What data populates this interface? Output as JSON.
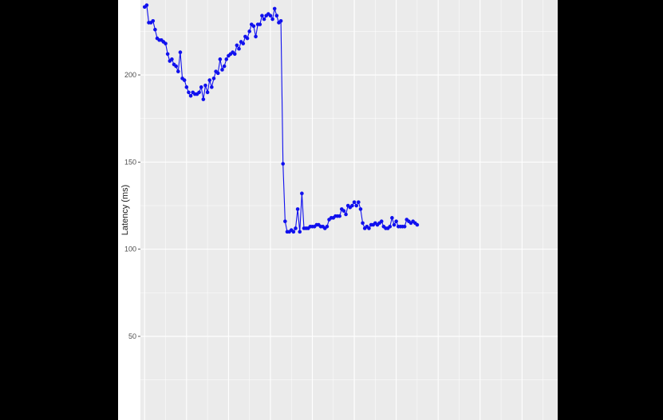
{
  "chart_data": {
    "type": "line",
    "title": "",
    "xlabel": "",
    "ylabel": "Latency (ms)",
    "ylim": [
      2,
      243
    ],
    "xlim": [
      -2,
      197
    ],
    "yticks": [
      50,
      100,
      150,
      200
    ],
    "ytick_labels": [
      "50",
      "100",
      "150",
      "200"
    ],
    "grid": true,
    "legend": "none",
    "colors": {
      "series": "#1010ee",
      "panel": "#ebebeb",
      "grid": "#ffffff",
      "background": "#ffffff",
      "outer": "#000000"
    },
    "series": [
      {
        "values": [
          239,
          240,
          230,
          230,
          231,
          226,
          221,
          220,
          220,
          219,
          218,
          212,
          208,
          209,
          206,
          205,
          202,
          213,
          198,
          197,
          193,
          190,
          188,
          190,
          189,
          189,
          190,
          193,
          186,
          194,
          190,
          197,
          193,
          198,
          202,
          201,
          209,
          203,
          205,
          209,
          211,
          212,
          213,
          212,
          217,
          215,
          219,
          218,
          222,
          221,
          225,
          229,
          228,
          222,
          229,
          229,
          234,
          232,
          234,
          235,
          234,
          232,
          238,
          234,
          230,
          231,
          149,
          116,
          110,
          110,
          111,
          110,
          112,
          123,
          110,
          132,
          112,
          112,
          112,
          113,
          113,
          113,
          114,
          114,
          113,
          113,
          112,
          113,
          117,
          118,
          118,
          119,
          119,
          119,
          123,
          122,
          120,
          125,
          124,
          125,
          127,
          125,
          127,
          123,
          115,
          112,
          113,
          112,
          114,
          114,
          115,
          114,
          115,
          116,
          113,
          112,
          112,
          113,
          118,
          114,
          116,
          113,
          113,
          113,
          113,
          117,
          116,
          115,
          116,
          115,
          114
        ]
      }
    ]
  }
}
